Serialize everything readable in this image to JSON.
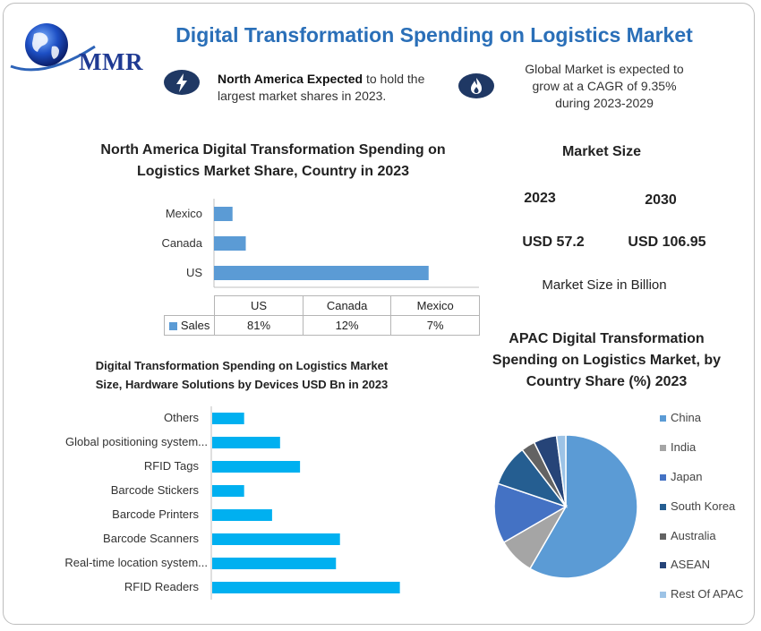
{
  "header": {
    "logo_text": "MMR",
    "title": "Digital Transformation Spending on Logistics Market"
  },
  "callouts": {
    "left_bold": "North America Expected",
    "left_rest": " to hold the",
    "left_line2": "largest market shares in 2023.",
    "right_line1": "Global Market is expected to",
    "right_line2": "grow at a CAGR of 9.35%",
    "right_line3": "during 2023-2029",
    "left_icon": "lightning-icon",
    "right_icon": "flame-icon"
  },
  "market_size": {
    "title": "Market Size",
    "year_a": "2023",
    "year_b": "2030",
    "value_a": "USD 57.2",
    "value_b": "USD 106.95",
    "unit_note": "Market Size in Billion"
  },
  "colors": {
    "title_blue": "#2a6fb8",
    "bar_blue": "#5b9bd5",
    "cyan_bar": "#00b0f0",
    "icon_navy": "#1f3864"
  },
  "chart_data": [
    {
      "type": "bar",
      "orientation": "horizontal",
      "title_line1": "North America Digital Transformation Spending on",
      "title_line2": "Logistics Market Share, Country  in 2023",
      "categories": [
        "US",
        "Canada",
        "Mexico"
      ],
      "series": [
        {
          "name": "Sales",
          "values": [
            81,
            12,
            7
          ]
        }
      ],
      "value_labels": [
        "81%",
        "12%",
        "7%"
      ],
      "unit": "%",
      "xlim": [
        0,
        100
      ],
      "legend": "data-table"
    },
    {
      "type": "bar",
      "orientation": "horizontal",
      "title_line1": "Digital Transformation Spending on Logistics Market",
      "title_line2": "Size, Hardware Solutions by Devices USD Bn  in 2023",
      "categories": [
        "Others",
        "Global positioning system...",
        "RFID Tags",
        "Barcode Stickers",
        "Barcode Printers",
        "Barcode Scanners",
        "Real-time location system...",
        "RFID Readers"
      ],
      "values": [
        0.8,
        1.7,
        2.2,
        0.8,
        1.5,
        3.2,
        3.1,
        4.7
      ],
      "xlim": [
        0,
        5
      ]
    },
    {
      "type": "pie",
      "title_line1": "APAC Digital Transformation",
      "title_line2": "Spending on Logistics Market, by",
      "title_line3": "Country Share (%) 2023",
      "labels": [
        "China",
        "India",
        "Japan",
        "South Korea",
        "Australia",
        "ASEAN",
        "Rest Of APAC"
      ],
      "values": [
        56,
        8,
        13,
        9,
        3,
        5,
        2
      ],
      "colors": [
        "#5b9bd5",
        "#a5a5a5",
        "#4472c4",
        "#255e91",
        "#636363",
        "#264478",
        "#9dc3e6"
      ],
      "legend": "right"
    }
  ]
}
